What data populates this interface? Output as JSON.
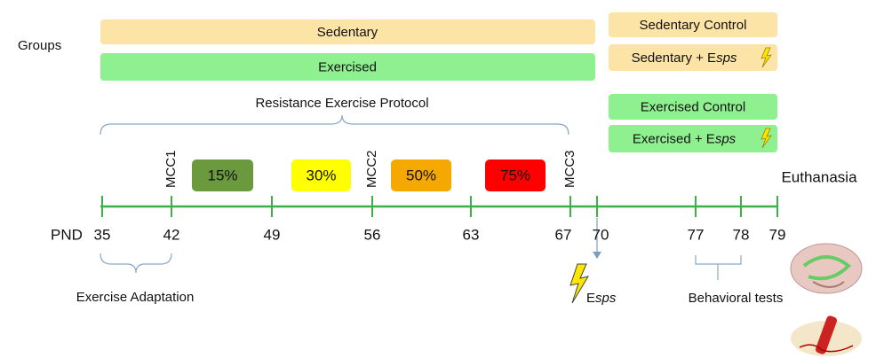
{
  "groups_label": "Groups",
  "timeline_groups": [
    {
      "label": "Sedentary",
      "color": "#fce3a6"
    },
    {
      "label": "Exercised",
      "color": "#8ef08f"
    }
  ],
  "outcome_groups": [
    {
      "label": "Sedentary Control",
      "color": "#fce3a6"
    },
    {
      "label": "Sedentary + E",
      "label_italic": "sps",
      "color": "#fce3a6"
    },
    {
      "label": "Exercised Control",
      "color": "#8ef08f"
    },
    {
      "label": "Exercised + E",
      "label_italic": "sps",
      "color": "#8ef08f"
    }
  ],
  "protocol_label": "Resistance Exercise Protocol",
  "mcc_labels": [
    "MCC1",
    "MCC2",
    "MCC3"
  ],
  "intensities": [
    {
      "label": "15%",
      "color": "#6b9a3e"
    },
    {
      "label": "30%",
      "color": "#ffff00"
    },
    {
      "label": "50%",
      "color": "#f5a800"
    },
    {
      "label": "75%",
      "color": "#ff0000"
    }
  ],
  "axis_label": "PND",
  "days": [
    35,
    42,
    49,
    56,
    63,
    67,
    70,
    77,
    78,
    79
  ],
  "adaptation_label": "Exercise Adaptation",
  "stress_label": {
    "prefix": "E",
    "italic": "sps"
  },
  "behavior_label": "Behavioral tests",
  "end_label": "Euthanasia"
}
